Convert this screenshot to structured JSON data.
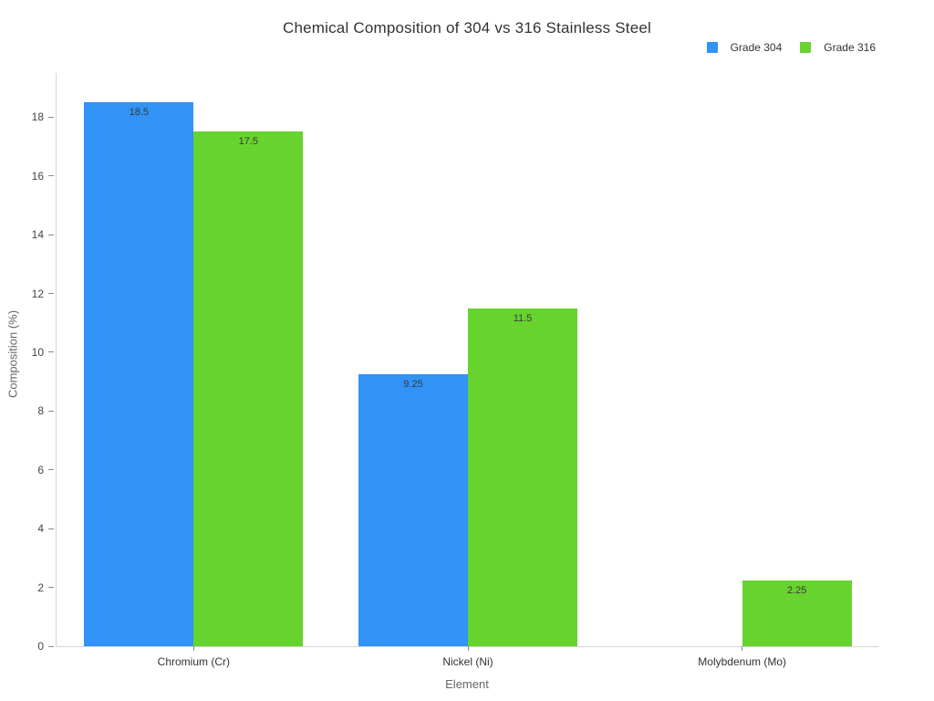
{
  "chart_data": {
    "type": "bar",
    "title": "Chemical Composition of 304 vs 316 Stainless Steel",
    "xlabel": "Element",
    "ylabel": "Composition (%)",
    "categories": [
      "Chromium (Cr)",
      "Nickel (Ni)",
      "Molybdenum (Mo)"
    ],
    "series": [
      {
        "name": "Grade 304",
        "color": "#3193F5",
        "values": [
          18.5,
          9.25,
          0
        ]
      },
      {
        "name": "Grade 316",
        "color": "#66D32E",
        "values": [
          17.5,
          11.5,
          2.25
        ]
      }
    ],
    "yticks": [
      0,
      2,
      4,
      6,
      8,
      10,
      12,
      14,
      16,
      18
    ],
    "ylim": [
      0,
      19.5
    ],
    "grid": false,
    "legend_position": "top-right",
    "background_color": "#ffffff",
    "bar_value_labels_shown": true
  }
}
